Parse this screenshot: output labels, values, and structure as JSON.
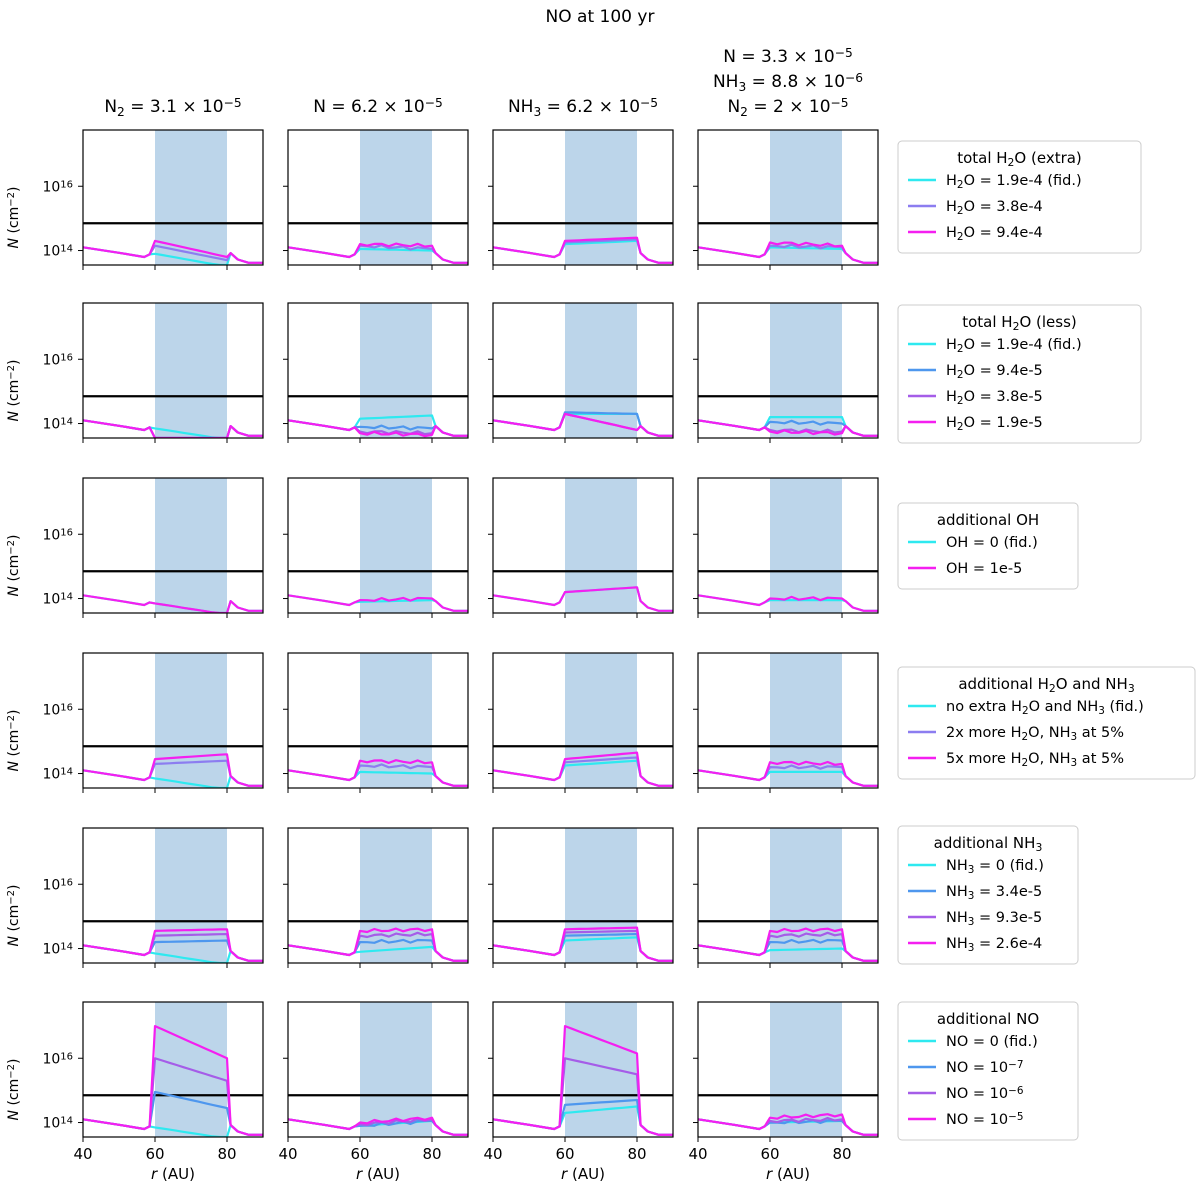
{
  "title": "NO at 100 yr",
  "columns": [
    {
      "lines": [
        {
          "pre": "N",
          "sub": "2",
          "post": " = 3.1 × 10",
          "sup": "−5"
        }
      ]
    },
    {
      "lines": [
        {
          "pre": "N = 6.2 × 10",
          "sup": "−5"
        }
      ]
    },
    {
      "lines": [
        {
          "pre": "NH",
          "sub": "3",
          "post": " = 6.2 × 10",
          "sup": "−5"
        }
      ]
    },
    {
      "lines": [
        {
          "pre": "N = 3.3 × 10",
          "sup": "−5"
        },
        {
          "pre": "NH",
          "sub": "3",
          "post": " = 8.8 × 10",
          "sup": "−6"
        },
        {
          "pre": "N",
          "sub": "2",
          "post": " = 2 × 10",
          "sup": "−5"
        }
      ]
    }
  ],
  "axes": {
    "ylabel": {
      "pre": "N",
      "post": " (cm",
      "sup": "−2",
      "post2": ")"
    },
    "xlabel": {
      "pre": "r",
      "post": " (AU)"
    },
    "xlim": [
      40,
      90
    ],
    "xticks": [
      40,
      60,
      80
    ],
    "xtick_labels": [
      "40",
      "60",
      "80"
    ],
    "ylim_log10": [
      13.55,
      17.75
    ],
    "yticks_log10": [
      14,
      16
    ],
    "ytick_labels": [
      {
        "base": "10",
        "sup": "14"
      },
      {
        "base": "10",
        "sup": "16"
      }
    ],
    "shaded_band_x": [
      60,
      80
    ],
    "shaded_color": "#bcd5ea",
    "reference_line_log10": 14.85
  },
  "chart_data": {
    "type": "line",
    "x_range_au": [
      40,
      90
    ],
    "rows": [
      {
        "legend_title": {
          "pre": "total H",
          "sub": "2",
          "post": "O (extra)"
        },
        "series": [
          {
            "color": "#2ee9f0",
            "label": {
              "pre": "H",
              "sub": "2",
              "post": "O = 1.9e-4 (fid.)"
            }
          },
          {
            "color": "#8c7df0",
            "label": {
              "pre": "H",
              "sub": "2",
              "post": "O = 3.8e-4"
            }
          },
          {
            "color": "#f41ff0",
            "label": {
              "pre": "H",
              "sub": "2",
              "post": "O = 9.4e-4"
            }
          }
        ],
        "panels": [
          {
            "band": [
              [
                13.9,
                13.5
              ],
              [
                14.15,
                13.7
              ],
              [
                14.3,
                13.8
              ]
            ]
          },
          {
            "band": [
              [
                14.05,
                14.0
              ],
              [
                14.15,
                14.05
              ],
              [
                14.2,
                14.15
              ]
            ]
          },
          {
            "band": [
              [
                14.2,
                14.3
              ],
              [
                14.25,
                14.35
              ],
              [
                14.3,
                14.4
              ]
            ]
          },
          {
            "band": [
              [
                14.1,
                14.05
              ],
              [
                14.15,
                14.1
              ],
              [
                14.25,
                14.15
              ]
            ]
          }
        ]
      },
      {
        "legend_title": {
          "pre": "total H",
          "sub": "2",
          "post": "O (less)"
        },
        "series": [
          {
            "color": "#2ee9f0",
            "label": {
              "pre": "H",
              "sub": "2",
              "post": "O = 1.9e-4 (fid.)"
            }
          },
          {
            "color": "#4e97ee",
            "label": {
              "pre": "H",
              "sub": "2",
              "post": "O = 9.4e-5"
            }
          },
          {
            "color": "#a55de8",
            "label": {
              "pre": "H",
              "sub": "2",
              "post": "O = 3.8e-5"
            }
          },
          {
            "color": "#f41ff0",
            "label": {
              "pre": "H",
              "sub": "2",
              "post": "O = 1.9e-5"
            }
          }
        ],
        "panels": [
          {
            "band": [
              [
                13.85,
                13.5
              ],
              [
                13.2,
                13.2
              ],
              [
                13.2,
                13.2
              ],
              [
                13.2,
                13.2
              ]
            ]
          },
          {
            "band": [
              [
                14.15,
                14.25
              ],
              [
                13.9,
                13.85
              ],
              [
                13.75,
                13.7
              ],
              [
                13.7,
                13.65
              ]
            ]
          },
          {
            "band": [
              [
                14.3,
                14.3
              ],
              [
                14.35,
                14.3
              ],
              [
                14.3,
                13.8
              ],
              [
                14.3,
                13.8
              ]
            ]
          },
          {
            "band": [
              [
                14.2,
                14.2
              ],
              [
                14.05,
                14.0
              ],
              [
                13.8,
                13.75
              ],
              [
                13.75,
                13.7
              ]
            ]
          }
        ]
      },
      {
        "legend_title": {
          "pre": "additional OH"
        },
        "series": [
          {
            "color": "#2ee9f0",
            "label": {
              "pre": "OH = 0 (fid.)"
            }
          },
          {
            "color": "#f41ff0",
            "label": {
              "pre": "OH = 1e-5"
            }
          }
        ],
        "panels": [
          {
            "band": [
              [
                13.85,
                13.5
              ],
              [
                13.85,
                13.5
              ]
            ]
          },
          {
            "band": [
              [
                13.9,
                13.95
              ],
              [
                13.95,
                14.0
              ]
            ]
          },
          {
            "band": [
              [
                14.2,
                14.35
              ],
              [
                14.2,
                14.35
              ]
            ]
          },
          {
            "band": [
              [
                13.95,
                13.95
              ],
              [
                14.0,
                14.0
              ]
            ]
          }
        ]
      },
      {
        "legend_title": {
          "pre": "additional H",
          "sub": "2",
          "post": "O and NH",
          "sub2": "3"
        },
        "series": [
          {
            "color": "#2ee9f0",
            "label": {
              "pre": "no extra H",
              "sub": "2",
              "post": "O and NH",
              "sub2": "3",
              "post2": " (fid.)"
            }
          },
          {
            "color": "#8c7df0",
            "label": {
              "pre": "2x more H",
              "sub": "2",
              "post": "O, NH",
              "sub2": "3",
              "post2": " at 5%"
            }
          },
          {
            "color": "#f41ff0",
            "label": {
              "pre": "5x more H",
              "sub": "2",
              "post": "O, NH",
              "sub2": "3",
              "post2": " at 5%"
            }
          }
        ],
        "panels": [
          {
            "band": [
              [
                13.85,
                13.5
              ],
              [
                14.3,
                14.4
              ],
              [
                14.45,
                14.6
              ]
            ]
          },
          {
            "band": [
              [
                14.05,
                14.0
              ],
              [
                14.25,
                14.2
              ],
              [
                14.4,
                14.35
              ]
            ]
          },
          {
            "band": [
              [
                14.25,
                14.4
              ],
              [
                14.35,
                14.5
              ],
              [
                14.45,
                14.65
              ]
            ]
          },
          {
            "band": [
              [
                14.05,
                14.05
              ],
              [
                14.2,
                14.2
              ],
              [
                14.35,
                14.3
              ]
            ]
          }
        ]
      },
      {
        "legend_title": {
          "pre": "additional NH",
          "sub": "3"
        },
        "series": [
          {
            "color": "#2ee9f0",
            "label": {
              "pre": "NH",
              "sub": "3",
              "post": " = 0 (fid.)"
            }
          },
          {
            "color": "#4e97ee",
            "label": {
              "pre": "NH",
              "sub": "3",
              "post": " = 3.4e-5"
            }
          },
          {
            "color": "#a55de8",
            "label": {
              "pre": "NH",
              "sub": "3",
              "post": " = 9.3e-5"
            }
          },
          {
            "color": "#f41ff0",
            "label": {
              "pre": "NH",
              "sub": "3",
              "post": " = 2.6e-4"
            }
          }
        ],
        "panels": [
          {
            "band": [
              [
                13.85,
                13.5
              ],
              [
                14.2,
                14.25
              ],
              [
                14.4,
                14.45
              ],
              [
                14.55,
                14.6
              ]
            ]
          },
          {
            "band": [
              [
                13.9,
                14.05
              ],
              [
                14.2,
                14.25
              ],
              [
                14.4,
                14.45
              ],
              [
                14.55,
                14.6
              ]
            ]
          },
          {
            "band": [
              [
                14.25,
                14.35
              ],
              [
                14.4,
                14.45
              ],
              [
                14.5,
                14.55
              ],
              [
                14.6,
                14.65
              ]
            ]
          },
          {
            "band": [
              [
                13.95,
                14.0
              ],
              [
                14.2,
                14.25
              ],
              [
                14.4,
                14.45
              ],
              [
                14.55,
                14.6
              ]
            ]
          }
        ]
      },
      {
        "legend_title": {
          "pre": "additional NO"
        },
        "series": [
          {
            "color": "#2ee9f0",
            "label": {
              "pre": "NO = 0 (fid.)"
            }
          },
          {
            "color": "#4e97ee",
            "label": {
              "pre": "NO = 10",
              "sup": "−7"
            }
          },
          {
            "color": "#a55de8",
            "label": {
              "pre": "NO = 10",
              "sup": "−6"
            }
          },
          {
            "color": "#f41ff0",
            "label": {
              "pre": "NO = 10",
              "sup": "−5"
            }
          }
        ],
        "panels": [
          {
            "band": [
              [
                13.85,
                13.5
              ],
              [
                14.95,
                14.45
              ],
              [
                16.0,
                15.3
              ],
              [
                17.0,
                16.0
              ]
            ]
          },
          {
            "band": [
              [
                13.9,
                14.05
              ],
              [
                13.9,
                14.05
              ],
              [
                13.95,
                14.1
              ],
              [
                14.0,
                14.15
              ]
            ]
          },
          {
            "band": [
              [
                14.3,
                14.5
              ],
              [
                14.55,
                14.7
              ],
              [
                16.0,
                15.5
              ],
              [
                17.0,
                16.15
              ]
            ]
          },
          {
            "band": [
              [
                14.0,
                14.05
              ],
              [
                14.0,
                14.05
              ],
              [
                14.05,
                14.1
              ],
              [
                14.15,
                14.25
              ]
            ]
          }
        ]
      }
    ]
  }
}
